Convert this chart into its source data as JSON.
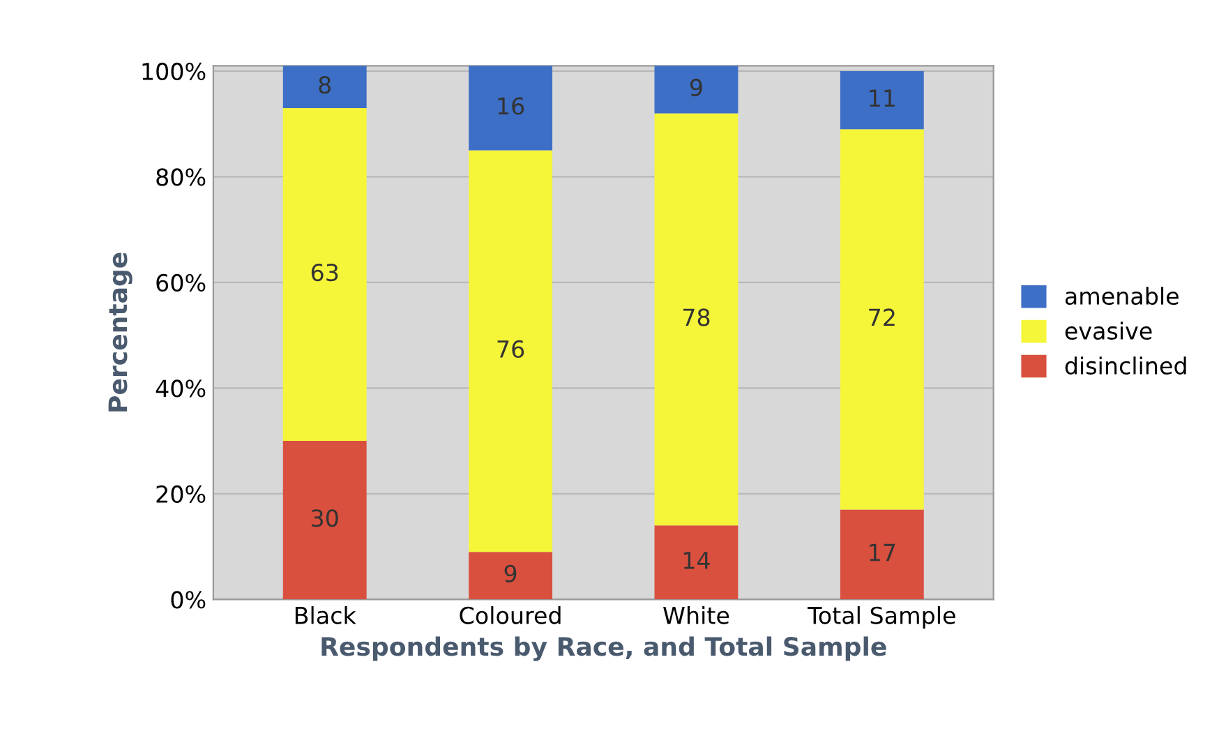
{
  "chart_data": {
    "type": "bar",
    "stacked": true,
    "xlabel": "Respondents by Race, and Total Sample",
    "ylabel": "Percentage",
    "categories": [
      "Black",
      "Coloured",
      "White",
      "Total Sample"
    ],
    "series": [
      {
        "name": "disinclined",
        "color": "#d9503f",
        "values": [
          30,
          9,
          14,
          17
        ]
      },
      {
        "name": "evasive",
        "color": "#f5f53a",
        "values": [
          63,
          76,
          78,
          72
        ]
      },
      {
        "name": "amenable",
        "color": "#3d6fc6",
        "values": [
          8,
          16,
          9,
          11
        ]
      }
    ],
    "ylim": [
      0,
      101
    ],
    "yticks": [
      {
        "value": 0,
        "label": "0%"
      },
      {
        "value": 20,
        "label": "20%"
      },
      {
        "value": 40,
        "label": "40%"
      },
      {
        "value": 60,
        "label": "60%"
      },
      {
        "value": 80,
        "label": "80%"
      },
      {
        "value": 100,
        "label": "100%"
      }
    ],
    "grid": "y",
    "legend": "right",
    "data_labels": true
  }
}
